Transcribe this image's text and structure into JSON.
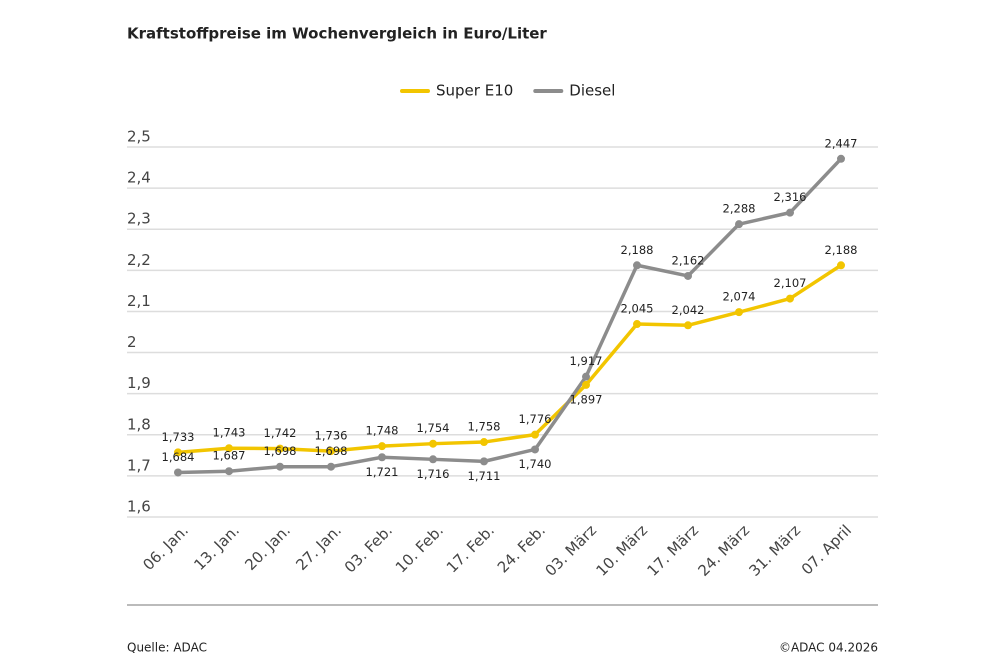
{
  "chart_data": {
    "type": "line",
    "title": "Kraftstoffpreise im Wochenvergleich in Euro/Liter",
    "source": "Quelle: ADAC",
    "copyright": "©ADAC 04.2026",
    "categories": [
      "06. Jan.",
      "13. Jan.",
      "20. Jan.",
      "27. Jan.",
      "03. Feb.",
      "10. Feb.",
      "17. Feb.",
      "24. Feb.",
      "03. März",
      "10. März",
      "17. März",
      "24. März",
      "31. März",
      "07. April"
    ],
    "series": [
      {
        "name": "Super E10",
        "color": "#f2c500",
        "values": [
          1.733,
          1.743,
          1.742,
          1.736,
          1.748,
          1.754,
          1.758,
          1.776,
          1.897,
          2.045,
          2.042,
          2.074,
          2.107,
          2.188
        ],
        "value_labels": [
          "1,733",
          "1,743",
          "1,742",
          "1,736",
          "1,748",
          "1,754",
          "1,758",
          "1,776",
          "1,897",
          "2,045",
          "2,042",
          "2,074",
          "2,107",
          "2,188"
        ]
      },
      {
        "name": "Diesel",
        "color": "#8c8c8c",
        "values": [
          1.684,
          1.687,
          1.698,
          1.698,
          1.721,
          1.716,
          1.711,
          1.74,
          1.917,
          2.188,
          2.162,
          2.288,
          2.316,
          2.447
        ],
        "value_labels": [
          "1,684",
          "1,687",
          "1,698",
          "1,698",
          "1,721",
          "1,716",
          "1,711",
          "1,740",
          "1,917",
          "2,188",
          "2,162",
          "2,288",
          "2,316",
          "2,447"
        ]
      }
    ],
    "ylim": [
      1.6,
      2.5
    ],
    "yticks": [
      {
        "value": 1.6,
        "label": "1,6"
      },
      {
        "value": 1.7,
        "label": "1,7"
      },
      {
        "value": 1.8,
        "label": "1,8"
      },
      {
        "value": 1.9,
        "label": "1,9"
      },
      2,
      {
        "value": 2.1,
        "label": "2,1"
      },
      {
        "value": 2.2,
        "label": "2,2"
      },
      {
        "value": 2.3,
        "label": "2,3"
      },
      {
        "value": 2.4,
        "label": "2,4"
      },
      {
        "value": 2.5,
        "label": "2,5"
      }
    ],
    "grid": true,
    "legend": "top"
  }
}
